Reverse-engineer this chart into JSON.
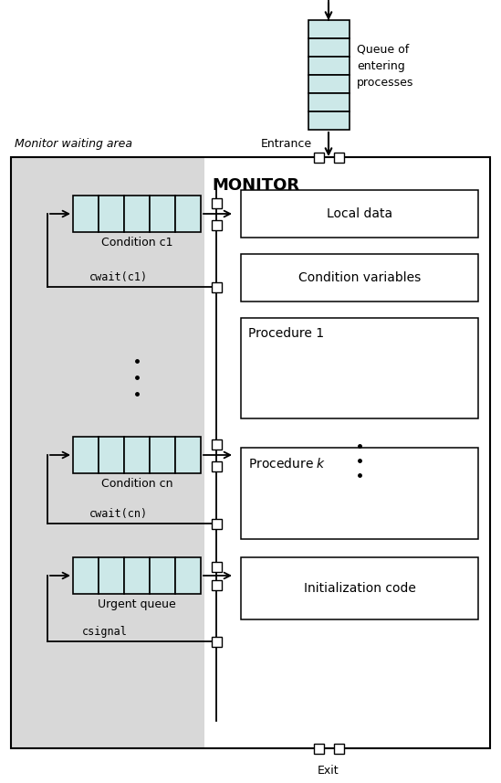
{
  "bg_color": "#ffffff",
  "gray_bg": "#d8d8d8",
  "queue_fill": "#cce8e8",
  "figsize": [
    5.49,
    8.57
  ],
  "dpi": 100,
  "title": "MONITOR",
  "monitor_waiting_area": "Monitor waiting area",
  "entrance_label": "Entrance",
  "exit_label": "Exit",
  "queue_label": "Queue of\nentering\nprocesses",
  "local_data": "Local data",
  "condition_variables": "Condition variables",
  "procedure1": "Procedure 1",
  "procedurek": "Procedure $k$",
  "init_code": "Initialization code",
  "condition_c1": "Condition c1",
  "condition_cn": "Condition cn",
  "urgent_queue": "Urgent queue",
  "cwait_c1": "cwait(c1)",
  "cwait_cn": "cwait(cn)",
  "csignal": "csignal"
}
